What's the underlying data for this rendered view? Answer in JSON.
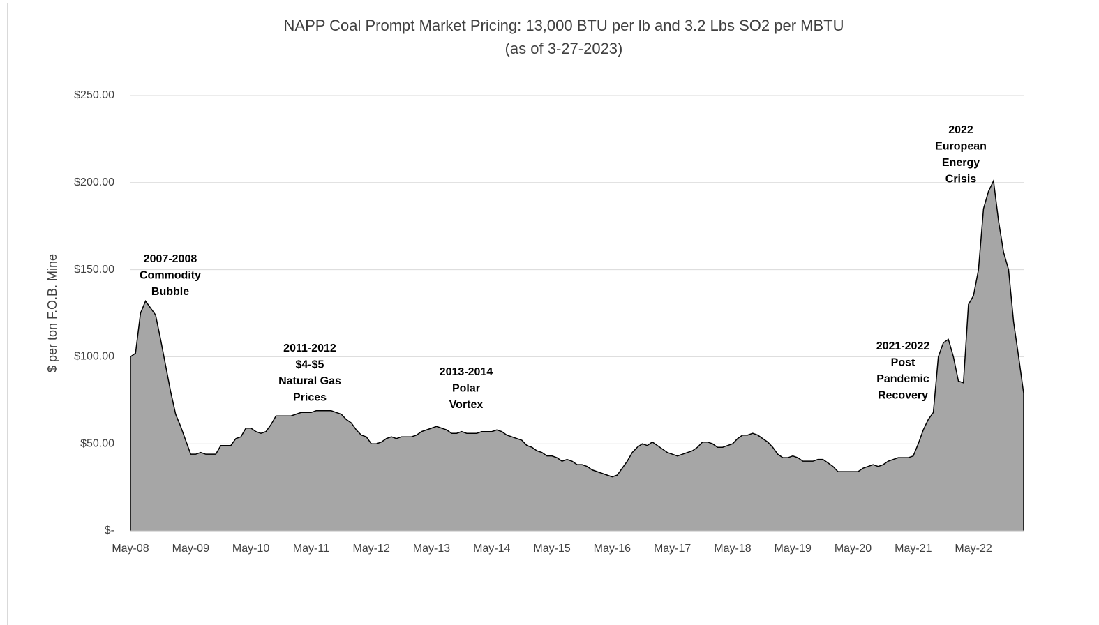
{
  "chart_data": {
    "type": "area",
    "title": "NAPP Coal Prompt Market Pricing: 13,000 BTU per lb and 3.2 Lbs SO2 per MBTU",
    "subtitle": "(as of 3-27-2023)",
    "y_label": "$ per ton F.O.B. Mine",
    "color": "#a6a6a6",
    "line_color": "#000000",
    "grid": true,
    "ylim": [
      0,
      250
    ],
    "yticks": [
      {
        "value": 0,
        "label": "$-"
      },
      {
        "value": 50,
        "label": "$50.00"
      },
      {
        "value": 100,
        "label": "$100.00"
      },
      {
        "value": 150,
        "label": "$150.00"
      },
      {
        "value": 200,
        "label": "$200.00"
      },
      {
        "value": 250,
        "label": "$250.00"
      }
    ],
    "categories": [
      "May-08",
      null,
      null,
      null,
      null,
      null,
      null,
      null,
      null,
      null,
      null,
      null,
      "May-09",
      null,
      null,
      null,
      null,
      null,
      null,
      null,
      null,
      null,
      null,
      null,
      "May-10",
      null,
      null,
      null,
      null,
      null,
      null,
      null,
      null,
      null,
      null,
      null,
      "May-11",
      null,
      null,
      null,
      null,
      null,
      null,
      null,
      null,
      null,
      null,
      null,
      "May-12",
      null,
      null,
      null,
      null,
      null,
      null,
      null,
      null,
      null,
      null,
      null,
      "May-13",
      null,
      null,
      null,
      null,
      null,
      null,
      null,
      null,
      null,
      null,
      null,
      "May-14",
      null,
      null,
      null,
      null,
      null,
      null,
      null,
      null,
      null,
      null,
      null,
      "May-15",
      null,
      null,
      null,
      null,
      null,
      null,
      null,
      null,
      null,
      null,
      null,
      "May-16",
      null,
      null,
      null,
      null,
      null,
      null,
      null,
      null,
      null,
      null,
      null,
      "May-17",
      null,
      null,
      null,
      null,
      null,
      null,
      null,
      null,
      null,
      null,
      null,
      "May-18",
      null,
      null,
      null,
      null,
      null,
      null,
      null,
      null,
      null,
      null,
      null,
      "May-19",
      null,
      null,
      null,
      null,
      null,
      null,
      null,
      null,
      null,
      null,
      null,
      "May-20",
      null,
      null,
      null,
      null,
      null,
      null,
      null,
      null,
      null,
      null,
      null,
      "May-21",
      null,
      null,
      null,
      null,
      null,
      null,
      null,
      null,
      null,
      null,
      null,
      "May-22",
      null,
      null,
      null,
      null,
      null,
      null,
      null,
      null,
      null,
      null
    ],
    "values": [
      100,
      102,
      125,
      132,
      128,
      124,
      110,
      95,
      80,
      67,
      60,
      52,
      44,
      44,
      45,
      44,
      44,
      44,
      49,
      49,
      49,
      53,
      54,
      59,
      59,
      57,
      56,
      57,
      61,
      66,
      66,
      66,
      66,
      67,
      68,
      68,
      68,
      69,
      69,
      69,
      69,
      68,
      67,
      64,
      62,
      58,
      55,
      54,
      50,
      50,
      51,
      53,
      54,
      53,
      54,
      54,
      54,
      55,
      57,
      58,
      59,
      60,
      59,
      58,
      56,
      56,
      57,
      56,
      56,
      56,
      57,
      57,
      57,
      58,
      57,
      55,
      54,
      53,
      52,
      49,
      48,
      46,
      45,
      43,
      43,
      42,
      40,
      41,
      40,
      38,
      38,
      37,
      35,
      34,
      33,
      32,
      31,
      32,
      36,
      40,
      45,
      48,
      50,
      49,
      51,
      49,
      47,
      45,
      44,
      43,
      44,
      45,
      46,
      48,
      51,
      51,
      50,
      48,
      48,
      49,
      50,
      53,
      55,
      55,
      56,
      55,
      53,
      51,
      48,
      44,
      42,
      42,
      43,
      42,
      40,
      40,
      40,
      41,
      41,
      39,
      37,
      34,
      34,
      34,
      34,
      34,
      36,
      37,
      38,
      37,
      38,
      40,
      41,
      42,
      42,
      42,
      43,
      50,
      58,
      64,
      68,
      100,
      108,
      110,
      100,
      86,
      85,
      130,
      135,
      150,
      185,
      195,
      201,
      178,
      160,
      150,
      120,
      100,
      79
    ],
    "annotations": [
      [
        "2007-2008",
        "Commodity",
        "Bubble"
      ],
      [
        "2011-2012",
        "$4-$5",
        "Natural Gas",
        "Prices"
      ],
      [
        "2013-2014",
        "Polar",
        "Vortex"
      ],
      [
        "2021-2022",
        "Post",
        "Pandemic",
        "Recovery"
      ],
      [
        "2022",
        "European",
        "Energy",
        "Crisis"
      ]
    ]
  }
}
